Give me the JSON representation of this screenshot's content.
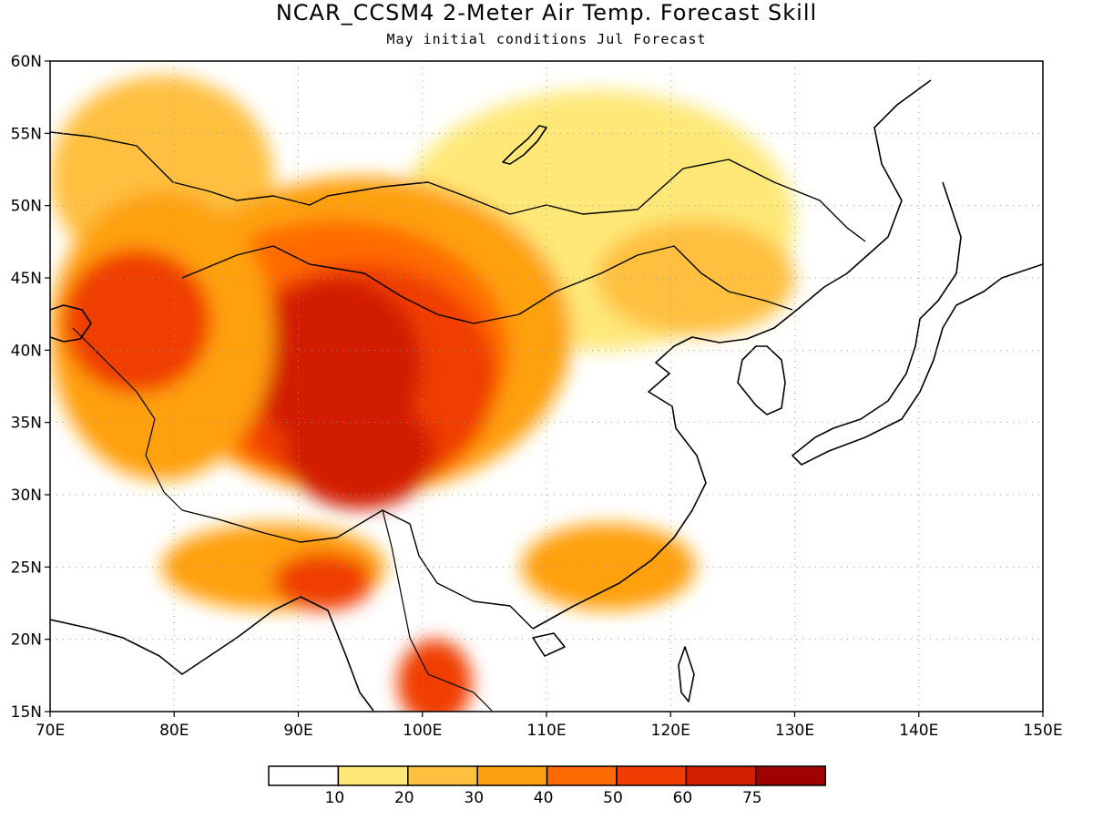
{
  "title": "NCAR_CCSM4 2-Meter Air Temp. Forecast Skill",
  "subtitle": "May initial conditions  Jul Forecast",
  "map": {
    "lon_range": [
      70,
      150
    ],
    "lat_range": [
      15,
      60
    ],
    "lon_ticks": [
      "70E",
      "80E",
      "90E",
      "100E",
      "110E",
      "120E",
      "130E",
      "140E",
      "150E"
    ],
    "lat_ticks": [
      "15N",
      "20N",
      "25N",
      "30N",
      "35N",
      "40N",
      "45N",
      "50N",
      "55N",
      "60N"
    ],
    "gridlines": "dotted",
    "regions": [
      {
        "level": 2,
        "lon": 79,
        "lat": 52,
        "rx": 9,
        "ry": 7
      },
      {
        "level": 1,
        "lon": 114,
        "lat": 49,
        "rx": 16,
        "ry": 9
      },
      {
        "level": 3,
        "lon": 95,
        "lat": 41,
        "rx": 17,
        "ry": 11
      },
      {
        "level": 4,
        "lon": 93,
        "lat": 40,
        "rx": 14,
        "ry": 9
      },
      {
        "level": 5,
        "lon": 95,
        "lat": 38,
        "rx": 11,
        "ry": 8
      },
      {
        "level": 6,
        "lon": 93,
        "lat": 39,
        "rx": 7,
        "ry": 6
      },
      {
        "level": 6,
        "lon": 95,
        "lat": 33,
        "rx": 6,
        "ry": 4
      },
      {
        "level": 3,
        "lon": 79,
        "lat": 41,
        "rx": 9,
        "ry": 10
      },
      {
        "level": 5,
        "lon": 77,
        "lat": 42,
        "rx": 6,
        "ry": 5
      },
      {
        "level": 3,
        "lon": 88,
        "lat": 25,
        "rx": 9,
        "ry": 3
      },
      {
        "level": 5,
        "lon": 92,
        "lat": 24,
        "rx": 4,
        "ry": 2
      },
      {
        "level": 5,
        "lon": 101,
        "lat": 17,
        "rx": 3,
        "ry": 3
      },
      {
        "level": 3,
        "lon": 115,
        "lat": 25,
        "rx": 7,
        "ry": 3
      },
      {
        "level": 2,
        "lon": 122,
        "lat": 45,
        "rx": 8,
        "ry": 4
      }
    ],
    "colors": [
      "#ffffff",
      "#ffe878",
      "#ffc040",
      "#ffa010",
      "#ff6a00",
      "#f03c00",
      "#d21e00",
      "#a00000"
    ]
  },
  "colorbar": {
    "labels": [
      "10",
      "20",
      "30",
      "40",
      "50",
      "60",
      "75"
    ],
    "colors": [
      "#ffffff",
      "#ffe878",
      "#ffc040",
      "#ffa010",
      "#ff6a00",
      "#f03c00",
      "#d21e00",
      "#a00000"
    ]
  }
}
